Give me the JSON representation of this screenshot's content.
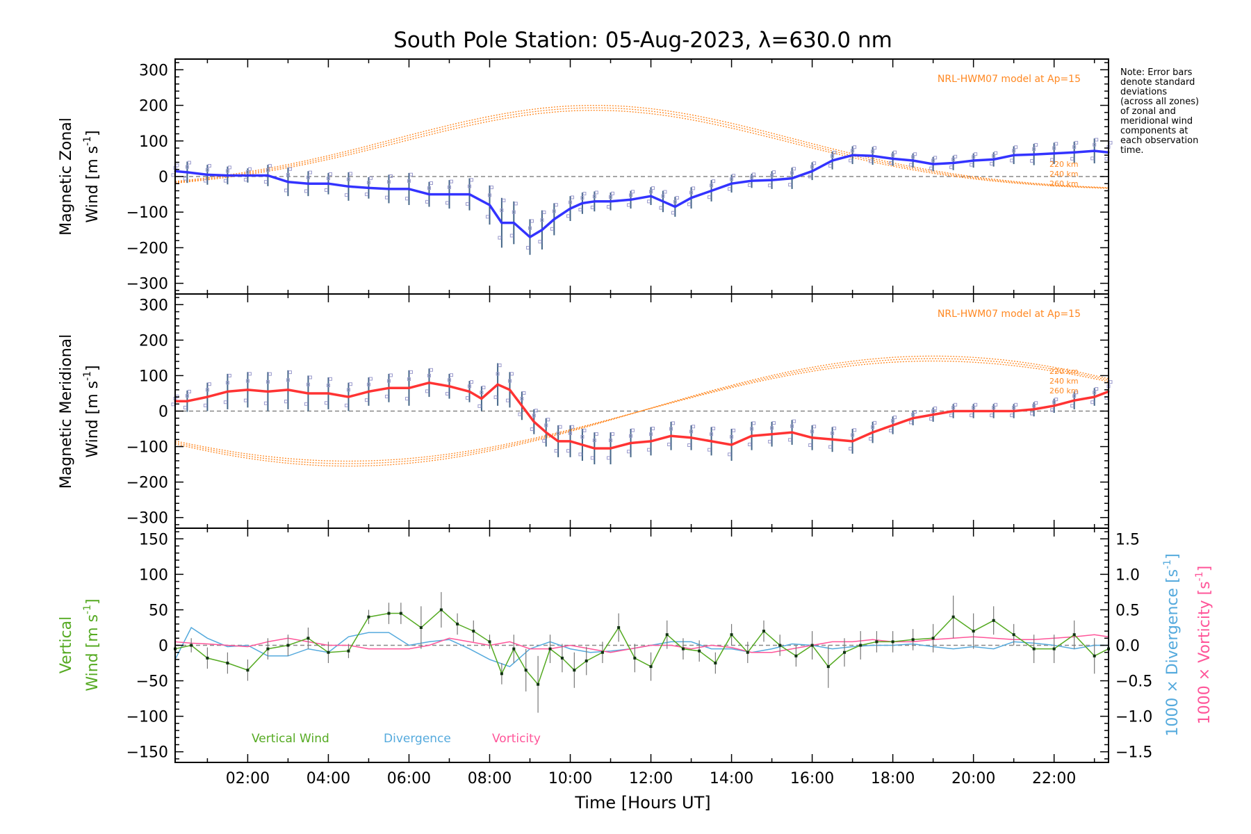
{
  "title": "South Pole Station: 05-Aug-2023, λ=630.0 nm",
  "note": [
    "Note: Error bars",
    "denote standard",
    "deviations",
    "(across all zones)",
    "of zonal and",
    "meridional wind",
    "components at",
    "each observation",
    "time."
  ],
  "xaxis": {
    "label": "Time [Hours UT]",
    "range": [
      0.2,
      23.35
    ],
    "ticks": [
      2,
      4,
      6,
      8,
      10,
      12,
      14,
      16,
      18,
      20,
      22
    ],
    "tick_labels": [
      "02:00",
      "04:00",
      "06:00",
      "08:00",
      "10:00",
      "12:00",
      "14:00",
      "16:00",
      "18:00",
      "20:00",
      "22:00"
    ]
  },
  "colors": {
    "zonal_line": "#3333ff",
    "meridional_line": "#ff3333",
    "vertical": "#55aa22",
    "divergence": "#55aadd",
    "vorticity": "#ff5599",
    "model": "#ff8822",
    "zone_points": "#9999cc",
    "zero_line": "#888888"
  },
  "chart_data": [
    {
      "type": "line",
      "panel": "zonal",
      "ylabel_line1": "Magnetic Zonal",
      "ylabel_line2": "Wind [m s",
      "ylabel_sup": "-1",
      "ylabel_end": "]",
      "ylim": [
        -330,
        330
      ],
      "yticks": [
        -300,
        -200,
        -100,
        0,
        100,
        200,
        300
      ],
      "model_label": "NRL-HWM07 model at Ap=15",
      "model_alt_labels": [
        "220 km",
        "240 km",
        "260 km"
      ],
      "x": [
        0.2,
        0.5,
        1.0,
        1.5,
        2.0,
        2.5,
        3.0,
        3.5,
        4.0,
        4.5,
        5.0,
        5.5,
        6.0,
        6.5,
        7.0,
        7.5,
        8.0,
        8.3,
        8.6,
        9.0,
        9.3,
        9.6,
        10.0,
        10.3,
        10.6,
        11.0,
        11.5,
        12.0,
        12.3,
        12.6,
        13.0,
        13.5,
        14.0,
        14.5,
        15.0,
        15.5,
        16.0,
        16.5,
        17.0,
        17.5,
        18.0,
        18.5,
        19.0,
        19.5,
        20.0,
        20.5,
        21.0,
        21.5,
        22.0,
        22.5,
        23.0,
        23.35
      ],
      "values": [
        15,
        12,
        5,
        3,
        3,
        3,
        -15,
        -20,
        -20,
        -28,
        -32,
        -35,
        -35,
        -50,
        -50,
        -50,
        -80,
        -130,
        -130,
        -170,
        -150,
        -120,
        -90,
        -75,
        -70,
        -70,
        -65,
        -55,
        -70,
        -85,
        -60,
        -40,
        -20,
        -12,
        -10,
        -5,
        15,
        45,
        60,
        58,
        50,
        45,
        35,
        38,
        45,
        48,
        60,
        62,
        65,
        68,
        72,
        68
      ],
      "errors": [
        18,
        30,
        28,
        25,
        20,
        30,
        40,
        35,
        30,
        40,
        30,
        40,
        45,
        35,
        40,
        45,
        55,
        70,
        60,
        50,
        55,
        45,
        35,
        30,
        28,
        25,
        25,
        25,
        30,
        28,
        30,
        30,
        25,
        20,
        25,
        30,
        25,
        25,
        25,
        25,
        20,
        20,
        20,
        20,
        20,
        20,
        25,
        30,
        30,
        30,
        35,
        30
      ],
      "model_curves": [
        {
          "name": "220 km",
          "amp": 200,
          "center": 10.6,
          "width": 7.0
        },
        {
          "name": "240 km",
          "amp": 193,
          "center": 10.6,
          "width": 6.9
        },
        {
          "name": "260 km",
          "amp": 186,
          "center": 10.6,
          "width": 6.8
        }
      ]
    },
    {
      "type": "line",
      "panel": "meridional",
      "ylabel_line1": "Magnetic Meridional",
      "ylabel_line2": "Wind [m s",
      "ylabel_sup": "-1",
      "ylabel_end": "]",
      "ylim": [
        -330,
        330
      ],
      "yticks": [
        -300,
        -200,
        -100,
        0,
        100,
        200,
        300
      ],
      "model_label": "NRL-HWM07 model at Ap=15",
      "model_alt_labels": [
        "220 km",
        "240 km",
        "260 km"
      ],
      "x": [
        0.2,
        0.5,
        1.0,
        1.5,
        2.0,
        2.5,
        3.0,
        3.5,
        4.0,
        4.5,
        5.0,
        5.5,
        6.0,
        6.5,
        7.0,
        7.5,
        7.8,
        8.2,
        8.5,
        8.8,
        9.1,
        9.4,
        9.7,
        10.0,
        10.3,
        10.6,
        11.0,
        11.5,
        12.0,
        12.5,
        13.0,
        13.5,
        14.0,
        14.5,
        15.0,
        15.5,
        16.0,
        16.5,
        17.0,
        17.5,
        18.0,
        18.5,
        19.0,
        19.5,
        20.0,
        20.5,
        21.0,
        21.5,
        22.0,
        22.5,
        23.0,
        23.35
      ],
      "values": [
        28,
        28,
        40,
        55,
        60,
        55,
        60,
        50,
        50,
        40,
        55,
        65,
        65,
        80,
        70,
        55,
        35,
        75,
        60,
        15,
        -30,
        -60,
        -85,
        -85,
        -95,
        -105,
        -105,
        -90,
        -85,
        -70,
        -75,
        -85,
        -95,
        -70,
        -65,
        -60,
        -75,
        -80,
        -85,
        -60,
        -40,
        -20,
        -10,
        0,
        0,
        0,
        0,
        5,
        15,
        30,
        40,
        55
      ],
      "errors": [
        15,
        30,
        40,
        50,
        50,
        55,
        55,
        50,
        45,
        40,
        40,
        40,
        50,
        40,
        35,
        30,
        35,
        60,
        50,
        40,
        35,
        40,
        45,
        45,
        45,
        45,
        45,
        40,
        40,
        40,
        35,
        40,
        45,
        40,
        35,
        35,
        35,
        35,
        35,
        30,
        25,
        20,
        20,
        20,
        20,
        20,
        20,
        20,
        20,
        25,
        25,
        30
      ],
      "model_curves": [
        {
          "name": "220 km",
          "amp": 155
        },
        {
          "name": "240 km",
          "amp": 148
        },
        {
          "name": "260 km",
          "amp": 141
        }
      ]
    },
    {
      "type": "line",
      "panel": "vertical",
      "ylabel_line1": "Vertical",
      "ylabel_line2": "Wind [m s",
      "ylabel_sup": "-1",
      "ylabel_end": "]",
      "ylim": [
        -165,
        165
      ],
      "yticks": [
        -150,
        -100,
        -50,
        0,
        50,
        100,
        150
      ],
      "y2lim": [
        -1.65,
        1.65
      ],
      "y2ticks": [
        -1.5,
        -1.0,
        -0.5,
        0.0,
        0.5,
        1.0,
        1.5
      ],
      "y2_tick_labels": [
        "−1.5",
        "−1.0",
        "−0.5",
        "0.0",
        "0.5",
        "1.0",
        "1.5"
      ],
      "y2label_div": "1000 × Divergence [s",
      "y2label_vort": "1000 × Vorticity [s",
      "y2label_sup": "-1",
      "y2label_end": "]",
      "legend": [
        "Vertical Wind",
        "Divergence",
        "Vorticity"
      ],
      "vertical_x": [
        0.2,
        0.6,
        1.0,
        1.5,
        2.0,
        2.5,
        3.0,
        3.5,
        4.0,
        4.5,
        5.0,
        5.5,
        5.8,
        6.3,
        6.8,
        7.2,
        7.6,
        8.0,
        8.3,
        8.6,
        8.9,
        9.2,
        9.5,
        9.8,
        10.1,
        10.4,
        10.8,
        11.2,
        11.6,
        12.0,
        12.4,
        12.8,
        13.2,
        13.6,
        14.0,
        14.4,
        14.8,
        15.2,
        15.6,
        16.0,
        16.4,
        16.8,
        17.2,
        17.6,
        18.0,
        18.5,
        19.0,
        19.5,
        20.0,
        20.5,
        21.0,
        21.5,
        22.0,
        22.5,
        23.0,
        23.35
      ],
      "vertical_values": [
        -5,
        0,
        -18,
        -25,
        -35,
        -5,
        0,
        10,
        -10,
        -8,
        40,
        45,
        45,
        25,
        50,
        30,
        20,
        5,
        -40,
        -5,
        -35,
        -55,
        -5,
        -18,
        -35,
        -22,
        -10,
        25,
        -18,
        -30,
        15,
        -5,
        -8,
        -25,
        15,
        -10,
        20,
        0,
        -15,
        0,
        -30,
        -10,
        0,
        5,
        5,
        8,
        10,
        40,
        20,
        35,
        15,
        -5,
        -5,
        15,
        -15,
        -5
      ],
      "vertical_errors": [
        10,
        10,
        15,
        15,
        15,
        15,
        15,
        15,
        15,
        10,
        10,
        15,
        15,
        30,
        25,
        15,
        15,
        10,
        15,
        20,
        30,
        40,
        20,
        20,
        25,
        20,
        15,
        20,
        20,
        20,
        20,
        15,
        15,
        15,
        15,
        15,
        15,
        15,
        15,
        20,
        30,
        20,
        20,
        15,
        15,
        15,
        20,
        30,
        25,
        20,
        15,
        20,
        20,
        20,
        25,
        20
      ],
      "divergence_x": [
        0.2,
        0.6,
        1.0,
        1.5,
        2.0,
        2.5,
        3.0,
        3.5,
        4.0,
        4.5,
        5.0,
        5.5,
        6.0,
        6.5,
        7.0,
        7.5,
        8.0,
        8.5,
        9.0,
        9.5,
        10.0,
        10.5,
        11.0,
        11.5,
        12.0,
        12.5,
        13.0,
        13.5,
        14.0,
        14.5,
        15.0,
        15.5,
        16.0,
        16.5,
        17.0,
        17.5,
        18.0,
        18.5,
        19.0,
        19.5,
        20.0,
        20.5,
        21.0,
        21.5,
        22.0,
        22.5,
        23.0,
        23.35
      ],
      "divergence_values": [
        -0.2,
        0.25,
        0.1,
        -0.02,
        0.0,
        -0.15,
        -0.15,
        -0.05,
        -0.1,
        0.12,
        0.18,
        0.18,
        0.0,
        0.05,
        0.08,
        -0.05,
        -0.2,
        -0.3,
        -0.05,
        0.05,
        -0.05,
        -0.1,
        -0.08,
        -0.05,
        0.0,
        0.05,
        0.05,
        -0.05,
        -0.05,
        -0.1,
        -0.05,
        0.02,
        0.0,
        -0.05,
        -0.02,
        0.0,
        0.0,
        0.02,
        -0.02,
        -0.05,
        -0.02,
        -0.05,
        0.05,
        0.03,
        0.0,
        -0.05,
        0.0,
        0.0
      ],
      "vorticity_x": [
        0.2,
        0.6,
        1.0,
        1.5,
        2.0,
        2.5,
        3.0,
        3.5,
        4.0,
        4.5,
        5.0,
        5.5,
        6.0,
        6.5,
        7.0,
        7.5,
        8.0,
        8.5,
        9.0,
        9.5,
        10.0,
        10.5,
        11.0,
        11.5,
        12.0,
        12.5,
        13.0,
        13.5,
        14.0,
        14.5,
        15.0,
        15.5,
        16.0,
        16.5,
        17.0,
        17.5,
        18.0,
        18.5,
        19.0,
        19.5,
        20.0,
        20.5,
        21.0,
        21.5,
        22.0,
        22.5,
        23.0,
        23.35
      ],
      "vorticity_values": [
        0.05,
        0.03,
        0.02,
        0.0,
        -0.02,
        0.05,
        0.1,
        0.05,
        0.0,
        0.0,
        -0.05,
        -0.05,
        -0.05,
        0.0,
        0.1,
        0.05,
        0.0,
        0.05,
        -0.05,
        -0.05,
        0.0,
        -0.05,
        -0.1,
        -0.05,
        0.0,
        0.0,
        -0.05,
        0.0,
        -0.03,
        -0.1,
        -0.1,
        -0.05,
        0.0,
        0.05,
        0.05,
        0.08,
        0.05,
        0.05,
        0.08,
        0.1,
        0.12,
        0.1,
        0.08,
        0.08,
        0.1,
        0.12,
        0.15,
        0.12
      ]
    }
  ]
}
